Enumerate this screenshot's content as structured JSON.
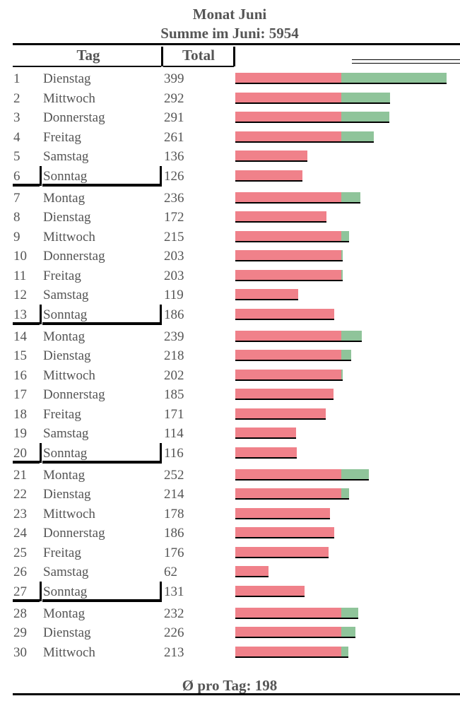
{
  "title": "Monat Juni",
  "subtitle": "Summe im Juni: 5954",
  "columns": {
    "tag": "Tag",
    "total": "Total"
  },
  "average_label": "Ø pro Tag: 198",
  "colors": {
    "base": "#f0818a",
    "excess": "#8fc49a",
    "overflow_marker": "#e8b817"
  },
  "chart_data": {
    "type": "bar",
    "title": "Monat Juni",
    "subtitle": "Summe im Juni: 5954",
    "columns": [
      "Tag",
      "Total"
    ],
    "base_threshold": 200,
    "average": 198,
    "sum": 5954,
    "rows": [
      {
        "n": "1",
        "day": "Dienstag",
        "total": 399
      },
      {
        "n": "2",
        "day": "Mittwoch",
        "total": 292
      },
      {
        "n": "3",
        "day": "Donnerstag",
        "total": 291
      },
      {
        "n": "4",
        "day": "Freitag",
        "total": 261
      },
      {
        "n": "5",
        "day": "Samstag",
        "total": 136
      },
      {
        "n": "6",
        "day": "Sonntag",
        "total": 126,
        "week_end": true
      },
      {
        "n": "7",
        "day": "Montag",
        "total": 236
      },
      {
        "n": "8",
        "day": "Dienstag",
        "total": 172
      },
      {
        "n": "9",
        "day": "Mittwoch",
        "total": 215
      },
      {
        "n": "10",
        "day": "Donnerstag",
        "total": 203
      },
      {
        "n": "11",
        "day": "Freitag",
        "total": 203
      },
      {
        "n": "12",
        "day": "Samstag",
        "total": 119
      },
      {
        "n": "13",
        "day": "Sonntag",
        "total": 186,
        "week_end": true
      },
      {
        "n": "14",
        "day": "Montag",
        "total": 239
      },
      {
        "n": "15",
        "day": "Dienstag",
        "total": 218
      },
      {
        "n": "16",
        "day": "Mittwoch",
        "total": 202
      },
      {
        "n": "17",
        "day": "Donnerstag",
        "total": 185
      },
      {
        "n": "18",
        "day": "Freitag",
        "total": 171
      },
      {
        "n": "19",
        "day": "Samstag",
        "total": 114
      },
      {
        "n": "20",
        "day": "Sonntag",
        "total": 116,
        "week_end": true
      },
      {
        "n": "21",
        "day": "Montag",
        "total": 252
      },
      {
        "n": "22",
        "day": "Dienstag",
        "total": 214
      },
      {
        "n": "23",
        "day": "Mittwoch",
        "total": 178
      },
      {
        "n": "24",
        "day": "Donnerstag",
        "total": 186
      },
      {
        "n": "25",
        "day": "Freitag",
        "total": 176
      },
      {
        "n": "26",
        "day": "Samstag",
        "total": 62
      },
      {
        "n": "27",
        "day": "Sonntag",
        "total": 131,
        "week_end": true
      },
      {
        "n": "28",
        "day": "Montag",
        "total": 232
      },
      {
        "n": "29",
        "day": "Dienstag",
        "total": 226
      },
      {
        "n": "30",
        "day": "Mittwoch",
        "total": 213
      }
    ]
  }
}
